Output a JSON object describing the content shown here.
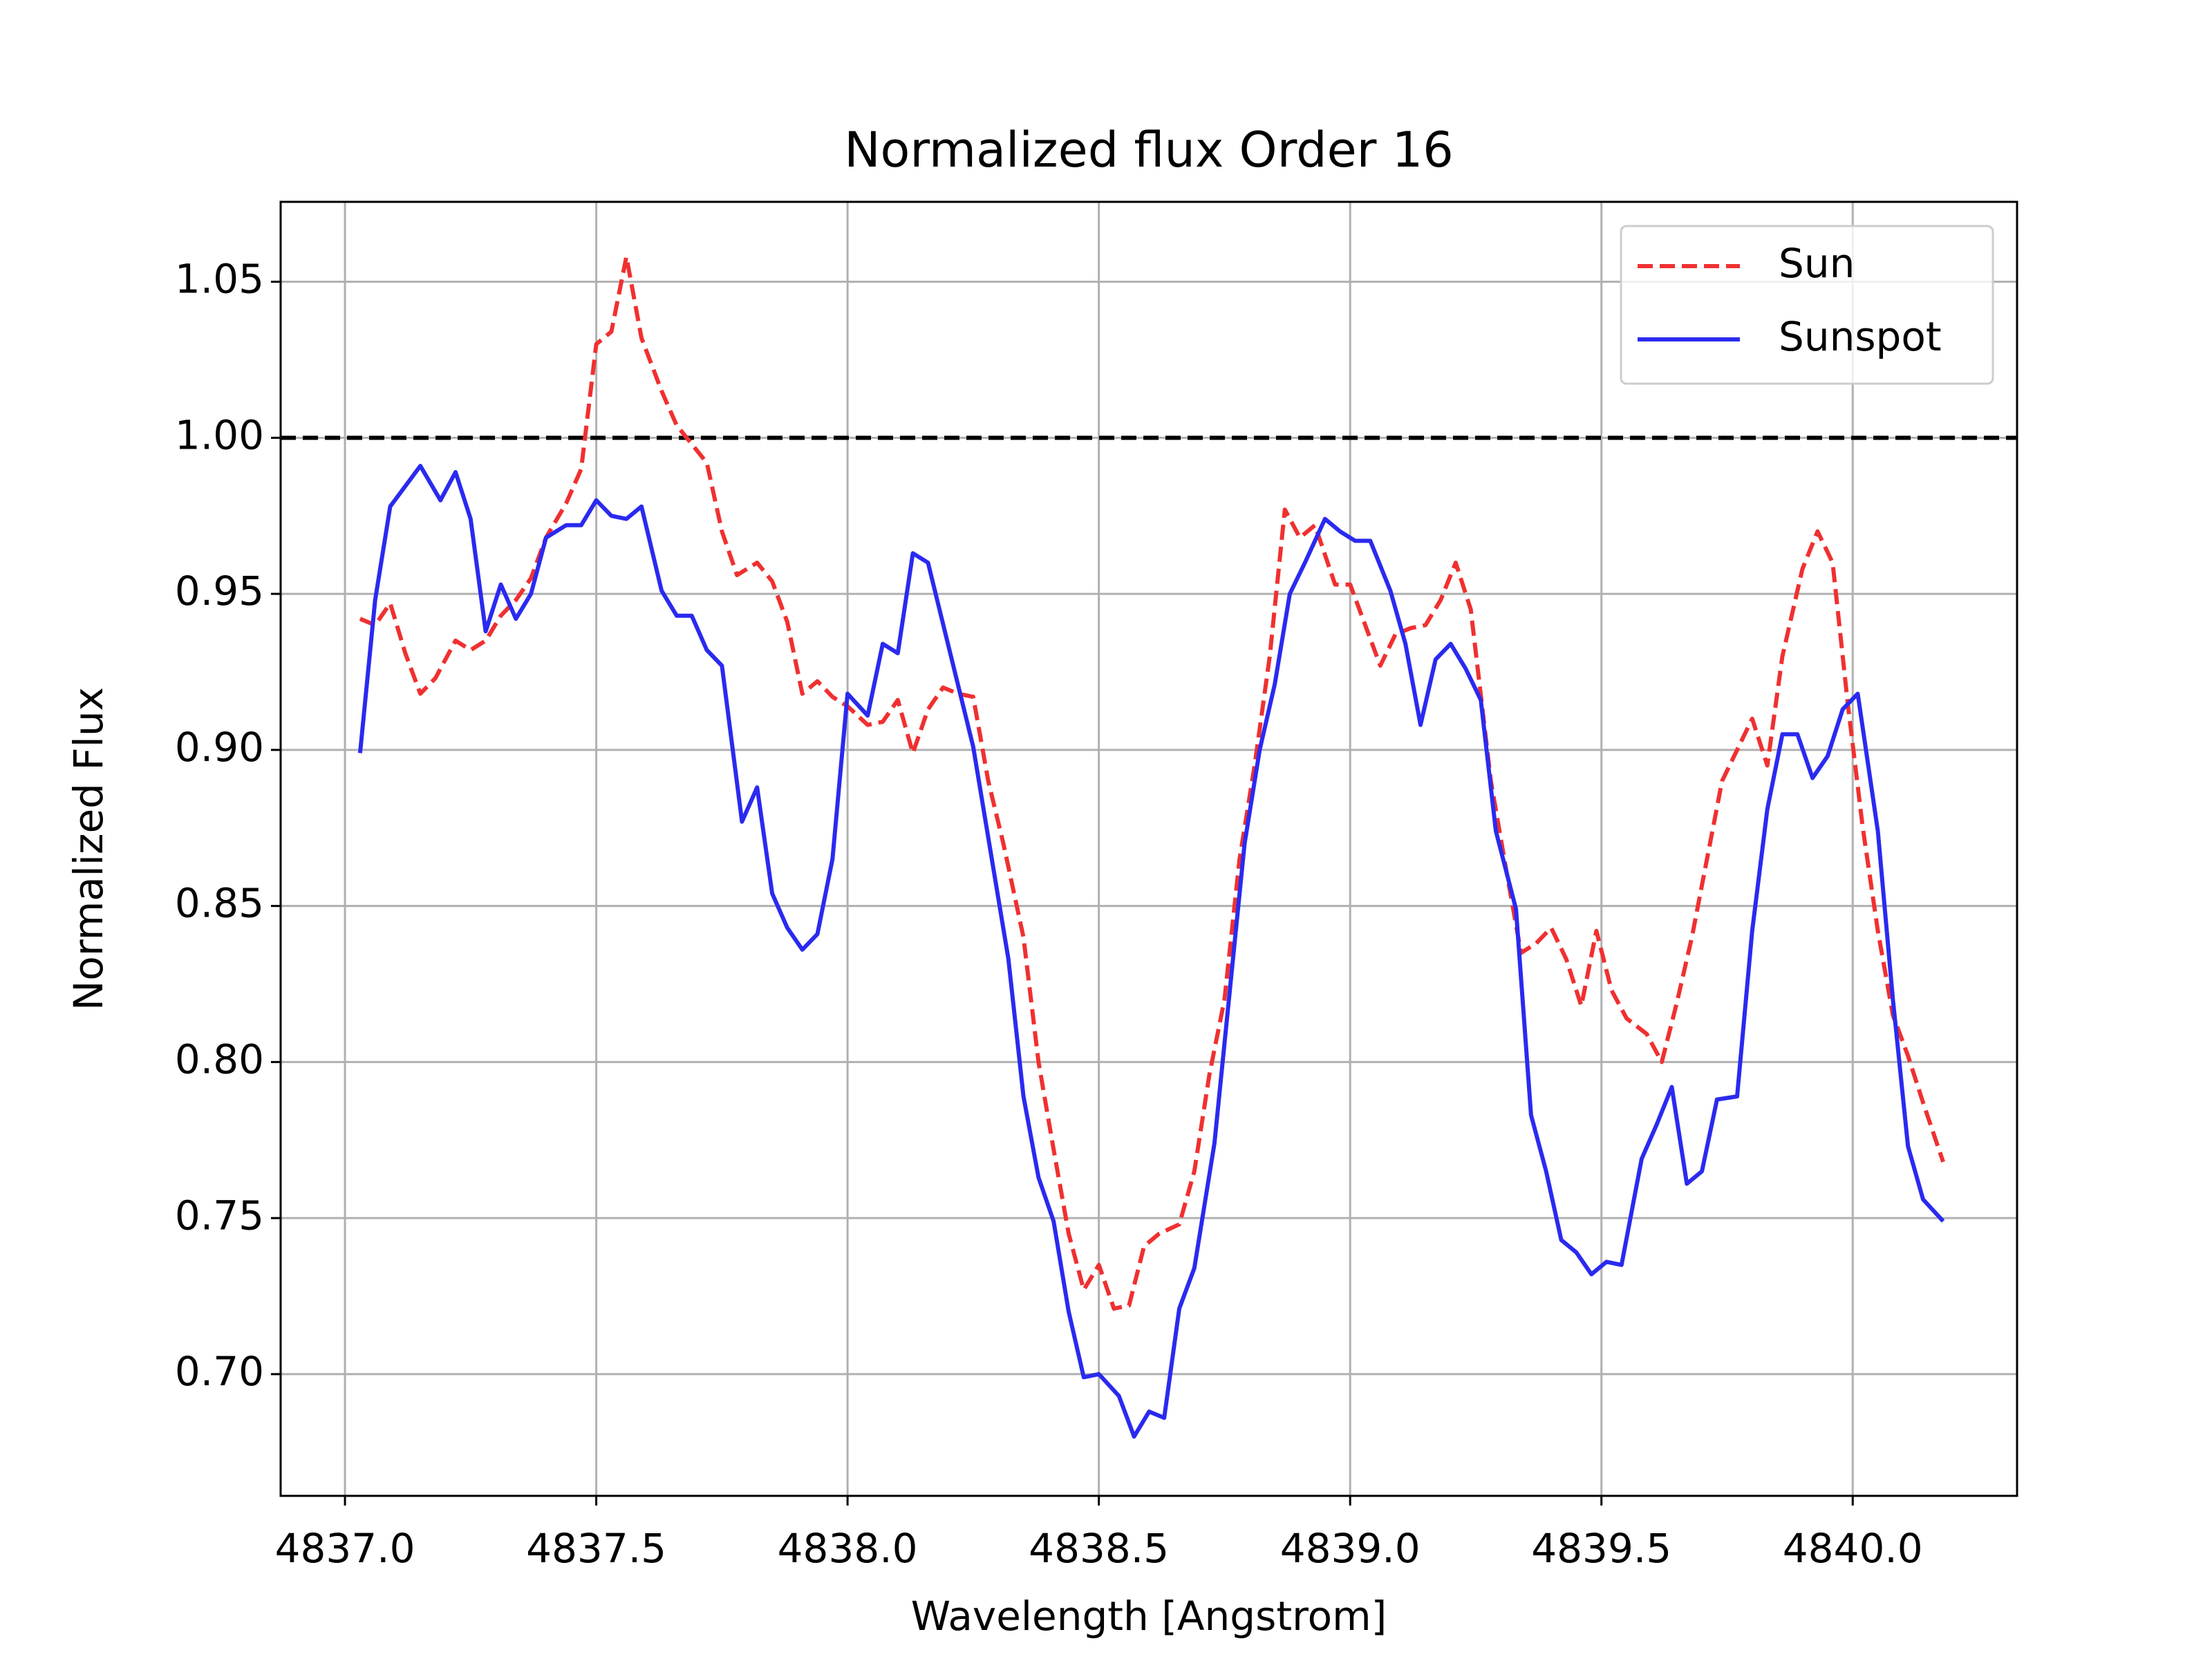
{
  "chart_data": {
    "type": "line",
    "title": "Normalized flux Order 16",
    "x_label": "Wavelength [Angstrom]",
    "y_label": "Normalized Flux",
    "xlim": [
      4836.872,
      4840.327
    ],
    "ylim": [
      0.661,
      1.0756
    ],
    "xticks": [
      {
        "value": 4837,
        "label": "4837.0"
      },
      4837.5,
      {
        "value": 4838,
        "label": "4838.0"
      },
      4838.5,
      {
        "value": 4839,
        "label": "4839.0"
      },
      4839.5,
      {
        "value": 4840,
        "label": "4840.0"
      }
    ],
    "yticks": [
      {
        "value": 0.7,
        "label": "0.70"
      },
      0.75,
      {
        "value": 0.8,
        "label": "0.80"
      },
      0.85,
      {
        "value": 0.9,
        "label": "0.90"
      },
      0.95,
      {
        "value": 1,
        "label": "1.00"
      },
      1.05
    ],
    "grid": true,
    "legend": "upper right",
    "reference_line": 1,
    "series": [
      {
        "name": "Sun",
        "color": "#f03030",
        "dashed": true,
        "x": [
          4837.03,
          4837.06,
          4837.09,
          4837.12,
          4837.15,
          4837.18,
          4837.22,
          4837.25,
          4837.28,
          4837.31,
          4837.34,
          4837.37,
          4837.4,
          4837.44,
          4837.47,
          4837.5,
          4837.53,
          4837.56,
          4837.59,
          4837.63,
          4837.66,
          4837.69,
          4837.72,
          4837.75,
          4837.78,
          4837.82,
          4837.85,
          4837.88,
          4837.91,
          4837.94,
          4837.97,
          4838.0,
          4838.04,
          4838.07,
          4838.1,
          4838.13,
          4838.16,
          4838.19,
          4838.22,
          4838.25,
          4838.28,
          4838.31,
          4838.35,
          4838.38,
          4838.41,
          4838.44,
          4838.47,
          4838.5,
          4838.53,
          4838.56,
          4838.59,
          4838.62,
          4838.66,
          4838.69,
          4838.72,
          4838.75,
          4838.78,
          4838.81,
          4838.84,
          4838.87,
          4838.9,
          4838.93,
          4838.97,
          4839.0,
          4839.03,
          4839.06,
          4839.09,
          4839.12,
          4839.15,
          4839.18,
          4839.21,
          4839.24,
          4839.28,
          4839.31,
          4839.34,
          4839.37,
          4839.4,
          4839.43,
          4839.46,
          4839.49,
          4839.52,
          4839.55,
          4839.59,
          4839.62,
          4839.65,
          4839.68,
          4839.71,
          4839.74,
          4839.77,
          4839.8,
          4839.83,
          4839.86,
          4839.9,
          4839.93,
          4839.96,
          4839.99,
          4840.02,
          4840.05,
          4840.08,
          4840.11,
          4840.14,
          4840.18
        ],
        "values": [
          0.942,
          0.94,
          0.947,
          0.931,
          0.918,
          0.923,
          0.935,
          0.932,
          0.935,
          0.943,
          0.948,
          0.955,
          0.968,
          0.979,
          0.99,
          1.03,
          1.034,
          1.058,
          1.032,
          1.015,
          1.004,
          0.998,
          0.992,
          0.97,
          0.956,
          0.96,
          0.954,
          0.941,
          0.918,
          0.922,
          0.917,
          0.914,
          0.908,
          0.909,
          0.916,
          0.899,
          0.913,
          0.92,
          0.918,
          0.917,
          0.89,
          0.87,
          0.84,
          0.8,
          0.772,
          0.745,
          0.727,
          0.735,
          0.721,
          0.722,
          0.741,
          0.745,
          0.748,
          0.765,
          0.796,
          0.82,
          0.865,
          0.895,
          0.93,
          0.977,
          0.968,
          0.972,
          0.953,
          0.953,
          0.94,
          0.927,
          0.937,
          0.939,
          0.94,
          0.948,
          0.96,
          0.945,
          0.89,
          0.862,
          0.835,
          0.838,
          0.843,
          0.833,
          0.818,
          0.842,
          0.823,
          0.814,
          0.809,
          0.8,
          0.819,
          0.84,
          0.865,
          0.89,
          0.9,
          0.91,
          0.895,
          0.93,
          0.958,
          0.97,
          0.96,
          0.915,
          0.875,
          0.842,
          0.815,
          0.802,
          0.787,
          0.768
        ]
      },
      {
        "name": "Sunspot",
        "color": "#2a2af0",
        "dashed": false,
        "x": [
          4837.03,
          4837.06,
          4837.09,
          4837.15,
          4837.19,
          4837.22,
          4837.25,
          4837.28,
          4837.31,
          4837.34,
          4837.37,
          4837.4,
          4837.44,
          4837.47,
          4837.5,
          4837.53,
          4837.56,
          4837.59,
          4837.63,
          4837.66,
          4837.69,
          4837.72,
          4837.75,
          4837.79,
          4837.82,
          4837.85,
          4837.88,
          4837.91,
          4837.94,
          4837.97,
          4838.0,
          4838.04,
          4838.07,
          4838.1,
          4838.13,
          4838.16,
          4838.25,
          4838.32,
          4838.35,
          4838.38,
          4838.41,
          4838.44,
          4838.47,
          4838.5,
          4838.54,
          4838.57,
          4838.6,
          4838.63,
          4838.66,
          4838.69,
          4838.73,
          4838.79,
          4838.82,
          4838.85,
          4838.88,
          4838.91,
          4838.95,
          4838.98,
          4839.01,
          4839.04,
          4839.08,
          4839.11,
          4839.14,
          4839.17,
          4839.2,
          4839.23,
          4839.26,
          4839.29,
          4839.33,
          4839.36,
          4839.39,
          4839.42,
          4839.45,
          4839.48,
          4839.51,
          4839.54,
          4839.58,
          4839.61,
          4839.64,
          4839.67,
          4839.7,
          4839.73,
          4839.77,
          4839.8,
          4839.83,
          4839.86,
          4839.89,
          4839.92,
          4839.95,
          4839.98,
          4840.01,
          4840.05,
          4840.08,
          4840.11,
          4840.14,
          4840.18
        ],
        "values": [
          0.899,
          0.948,
          0.978,
          0.991,
          0.98,
          0.989,
          0.974,
          0.938,
          0.953,
          0.942,
          0.95,
          0.968,
          0.972,
          0.972,
          0.98,
          0.975,
          0.974,
          0.978,
          0.951,
          0.943,
          0.943,
          0.932,
          0.927,
          0.877,
          0.888,
          0.854,
          0.843,
          0.836,
          0.841,
          0.865,
          0.918,
          0.911,
          0.934,
          0.931,
          0.963,
          0.96,
          0.901,
          0.833,
          0.789,
          0.763,
          0.749,
          0.72,
          0.699,
          0.7,
          0.693,
          0.68,
          0.688,
          0.686,
          0.721,
          0.734,
          0.774,
          0.87,
          0.9,
          0.921,
          0.95,
          0.96,
          0.974,
          0.97,
          0.967,
          0.967,
          0.951,
          0.934,
          0.908,
          0.929,
          0.934,
          0.926,
          0.916,
          0.874,
          0.849,
          0.783,
          0.765,
          0.743,
          0.739,
          0.732,
          0.736,
          0.735,
          0.769,
          0.78,
          0.792,
          0.761,
          0.765,
          0.788,
          0.789,
          0.842,
          0.881,
          0.905,
          0.905,
          0.891,
          0.898,
          0.913,
          0.918,
          0.874,
          0.82,
          0.773,
          0.756,
          0.749
        ]
      }
    ]
  }
}
